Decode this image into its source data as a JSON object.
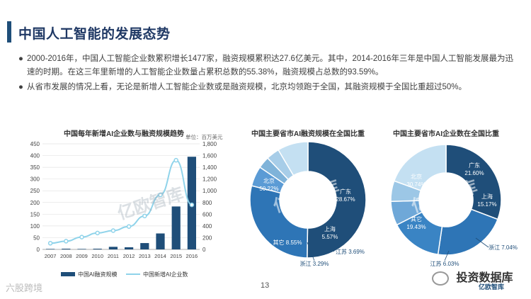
{
  "page": {
    "title": "中国人工智能的发展态势",
    "bullets": [
      "2000-2016年，中国人工智能企业数累积增长1477家，融资规模累积达27.6亿美元。其中，2014-2016年三年是中国人工智能发展最为迅速的时期。在这三年里新增的人工智能企业数量占累积总数的55.38%，融资规模占总数的93.59%。",
      "从省市发展的情况上看，无论是新增人工智能企业数或是融资规模，北京均领跑于全国，其融资规模于全国比重超过50%。"
    ],
    "bullet_symbol": "●",
    "page_number": "13",
    "footer_left": "六股跨境",
    "footer_right": "投资数据库",
    "watermark": "亿欧智库",
    "logo_small": "亿欧智库"
  },
  "chart_data": [
    {
      "type": "bar",
      "title": "中国每年新增AI企业数与融资规模趋势",
      "secondary_unit": "单位：百万美元",
      "categories": [
        "2007",
        "2008",
        "2009",
        "2010",
        "2011",
        "2012",
        "2013",
        "2014",
        "2015",
        "2016"
      ],
      "ylim": [
        0,
        450
      ],
      "yticks": [
        0,
        50,
        100,
        150,
        200,
        250,
        300,
        350,
        400,
        450
      ],
      "y2lim": [
        0,
        1800
      ],
      "y2ticks": [
        0,
        200,
        400,
        600,
        800,
        1000,
        1200,
        1400,
        1600,
        1800
      ],
      "series": [
        {
          "name": "中国AI融资规模",
          "axis": "left",
          "kind": "bar",
          "color": "#1f4e79",
          "values": [
            2,
            3,
            2,
            3,
            11,
            9,
            27,
            68,
            183,
            395
          ]
        },
        {
          "name": "中国新增AI企业数",
          "axis": "right",
          "kind": "line",
          "color": "#8fd3ea",
          "values": [
            105,
            140,
            210,
            280,
            320,
            390,
            570,
            930,
            1520,
            760
          ]
        }
      ]
    },
    {
      "type": "pie",
      "style": "donut",
      "title": "中国主要省市AI融资规模在全国比重",
      "slices": [
        {
          "label": "北京",
          "value": 50.22,
          "display": "50.22%",
          "color": "#1f4e79"
        },
        {
          "label": "广东",
          "value": 28.67,
          "display": "28.67%",
          "color": "#2e75b6"
        },
        {
          "label": "上海",
          "value": 5.57,
          "display": "5.57%",
          "color": "#5b9bd5"
        },
        {
          "label": "浙江",
          "value": 3.29,
          "display": "3.29%",
          "color": "#7fb3d9"
        },
        {
          "label": "江苏",
          "value": 3.69,
          "display": "3.69%",
          "color": "#a7cde8"
        },
        {
          "label": "其它",
          "value": 8.55,
          "display": "8.55%",
          "color": "#c4e0f2"
        }
      ]
    },
    {
      "type": "pie",
      "style": "donut",
      "title": "中国主要省市AI企业数在全国比重",
      "slices": [
        {
          "label": "北京",
          "value": 30.74,
          "display": "30.74%",
          "color": "#1f4e79"
        },
        {
          "label": "广东",
          "value": 21.6,
          "display": "21.60%",
          "color": "#2e75b6"
        },
        {
          "label": "上海",
          "value": 15.17,
          "display": "15.17%",
          "color": "#3a84c4"
        },
        {
          "label": "浙江",
          "value": 7.04,
          "display": "7.04%",
          "color": "#6fa8d8"
        },
        {
          "label": "江苏",
          "value": 6.03,
          "display": "6.03%",
          "color": "#9cc7e6"
        },
        {
          "label": "其它",
          "value": 19.43,
          "display": "19.43%",
          "color": "#c4e0f2"
        }
      ]
    }
  ]
}
